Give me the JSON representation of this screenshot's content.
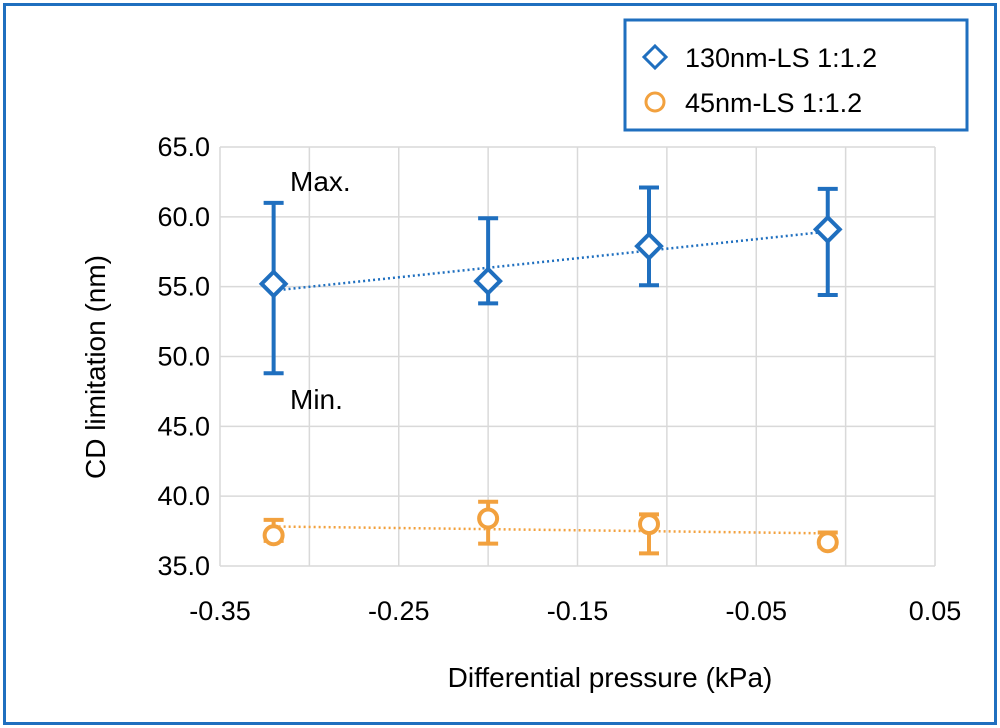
{
  "chart_data": {
    "type": "scatter",
    "xlabel": "Differential pressure (kPa)",
    "ylabel": "CD limitation (nm)",
    "xlim": [
      -0.35,
      0.05
    ],
    "ylim": [
      35.0,
      65.0
    ],
    "x_ticks": [
      "-0.35",
      "-0.25",
      "-0.15",
      "-0.05",
      "0.05"
    ],
    "y_ticks": [
      "35.0",
      "40.0",
      "45.0",
      "50.0",
      "55.0",
      "60.0",
      "65.0"
    ],
    "x_tick_values": [
      -0.35,
      -0.25,
      -0.15,
      -0.05,
      0.05
    ],
    "y_tick_values": [
      35,
      40,
      45,
      50,
      55,
      60,
      65
    ],
    "grid": true,
    "legend_position": "top-right",
    "annotations": [
      "Max.",
      "Min."
    ],
    "series": [
      {
        "name": "130nm-LS 1:1.2",
        "marker": "diamond",
        "color": "#1f6fbf",
        "trendline": true,
        "points": [
          {
            "x": -0.32,
            "y": 55.2,
            "min": 48.8,
            "max": 61.0
          },
          {
            "x": -0.2,
            "y": 55.4,
            "min": 53.8,
            "max": 59.9
          },
          {
            "x": -0.11,
            "y": 57.9,
            "min": 55.1,
            "max": 62.1
          },
          {
            "x": -0.01,
            "y": 59.1,
            "min": 54.4,
            "max": 62.0
          }
        ]
      },
      {
        "name": "45nm-LS 1:1.2",
        "marker": "circle",
        "color": "#f2a13e",
        "trendline": true,
        "points": [
          {
            "x": -0.32,
            "y": 37.2,
            "min": 36.8,
            "max": 38.3
          },
          {
            "x": -0.2,
            "y": 38.4,
            "min": 36.6,
            "max": 39.6
          },
          {
            "x": -0.11,
            "y": 38.0,
            "min": 35.9,
            "max": 38.7
          },
          {
            "x": -0.01,
            "y": 36.7,
            "min": 36.4,
            "max": 37.4
          }
        ]
      }
    ]
  }
}
